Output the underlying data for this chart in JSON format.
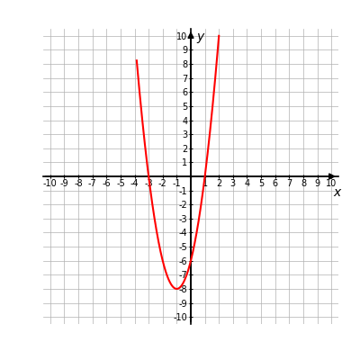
{
  "xlabel": "x",
  "ylabel": "y",
  "xlim": [
    -10.5,
    10.5
  ],
  "ylim": [
    -10.5,
    10.5
  ],
  "tick_positions": [
    -10,
    -9,
    -8,
    -7,
    -6,
    -5,
    -4,
    -3,
    -2,
    -1,
    0,
    1,
    2,
    3,
    4,
    5,
    6,
    7,
    8,
    9,
    10
  ],
  "curve_color": "#ff0000",
  "curve_linewidth": 1.5,
  "grid_color": "#b0b0b0",
  "grid_linewidth": 0.5,
  "background_color": "#ffffff",
  "axis_color": "#000000",
  "a_coeff": 2,
  "b_coeff": 4,
  "c_coeff": -6,
  "x_curve_start": -3.85,
  "x_curve_end": 2.0,
  "figsize": [
    4.0,
    4.0
  ],
  "dpi": 100,
  "tick_fontsize": 7,
  "label_fontsize": 10
}
